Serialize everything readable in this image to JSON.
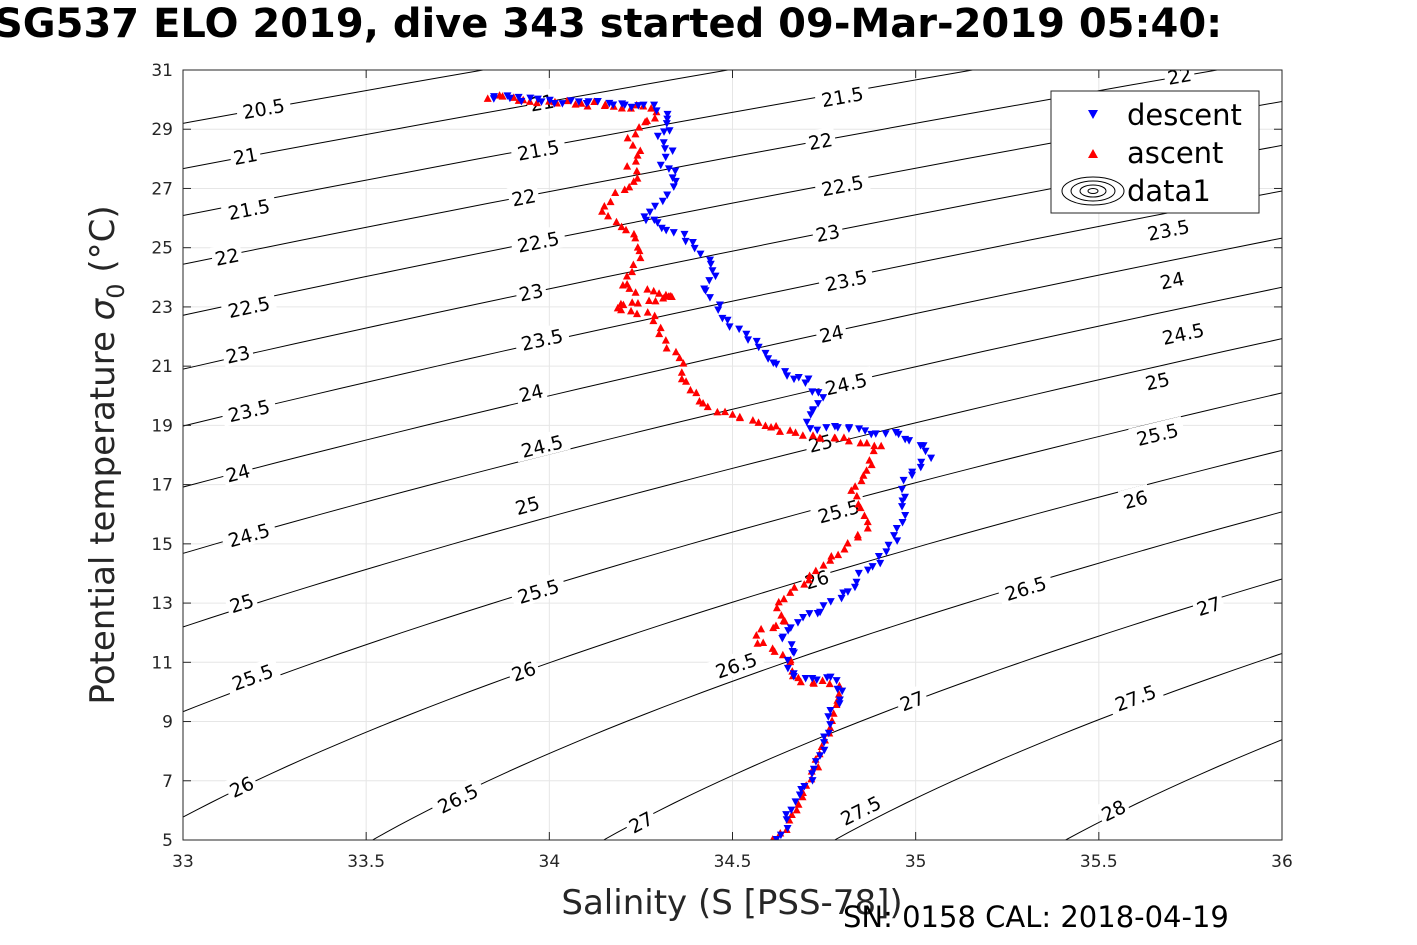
{
  "title": "SG537 ELO 2019, dive 343 started 09-Mar-2019 05:40:",
  "footer": "SN: 0158  CAL: 2018-04-19",
  "colors": {
    "descent": "#0000ff",
    "ascent": "#ff0000",
    "contour": "#000000",
    "grid": "#e6e6e6",
    "axis": "#262626"
  },
  "chart_data": {
    "type": "scatter",
    "xlabel": "Salinity (S [PSS-78])",
    "ylabel_prefix": "Potential temperature ",
    "ylabel_sigma": "σ",
    "ylabel_sub": "0",
    "ylabel_suffix": " (°C)",
    "xlim": [
      33,
      36
    ],
    "ylim": [
      5,
      31
    ],
    "xticks": [
      33,
      33.5,
      34,
      34.5,
      35,
      35.5,
      36
    ],
    "xtick_labels": [
      "33",
      "33.5",
      "34",
      "34.5",
      "35",
      "35.5",
      "36"
    ],
    "yticks": [
      5,
      7,
      9,
      11,
      13,
      15,
      17,
      19,
      21,
      23,
      25,
      27,
      29,
      31
    ],
    "ytick_labels": [
      "5",
      "7",
      "9",
      "11",
      "13",
      "15",
      "17",
      "19",
      "21",
      "23",
      "25",
      "27",
      "29",
      "31"
    ],
    "grid": true,
    "legend": {
      "placement": "top-right",
      "entries": [
        "descent",
        "ascent",
        "data1"
      ]
    },
    "contours": {
      "name": "data1",
      "levels": [
        20.5,
        21,
        21.5,
        22,
        22.5,
        23,
        23.5,
        24,
        24.5,
        25,
        25.5,
        26,
        26.5,
        27,
        27.5,
        28
      ],
      "labels": [
        {
          "text": "20.5",
          "s": 33.22,
          "t": 29.7
        },
        {
          "text": "21",
          "s": 33.17,
          "t": 28.1
        },
        {
          "text": "21.5",
          "s": 33.18,
          "t": 26.3
        },
        {
          "text": "22",
          "s": 33.12,
          "t": 24.7
        },
        {
          "text": "22.5",
          "s": 33.18,
          "t": 23.0
        },
        {
          "text": "23",
          "s": 33.15,
          "t": 21.4
        },
        {
          "text": "23.5",
          "s": 33.18,
          "t": 19.5
        },
        {
          "text": "24",
          "s": 33.15,
          "t": 17.4
        },
        {
          "text": "24.5",
          "s": 33.18,
          "t": 15.3
        },
        {
          "text": "25",
          "s": 33.16,
          "t": 13.0
        },
        {
          "text": "25.5",
          "s": 33.19,
          "t": 10.5
        },
        {
          "text": "26",
          "s": 33.16,
          "t": 6.8
        },
        {
          "text": "21",
          "s": 33.98,
          "t": 29.9
        },
        {
          "text": "21.5",
          "s": 33.97,
          "t": 28.3
        },
        {
          "text": "22",
          "s": 33.93,
          "t": 26.7
        },
        {
          "text": "22.5",
          "s": 33.97,
          "t": 25.2
        },
        {
          "text": "23",
          "s": 33.95,
          "t": 23.5
        },
        {
          "text": "23.5",
          "s": 33.98,
          "t": 21.9
        },
        {
          "text": "24",
          "s": 33.95,
          "t": 20.1
        },
        {
          "text": "24.5",
          "s": 33.98,
          "t": 18.3
        },
        {
          "text": "25",
          "s": 33.94,
          "t": 16.3
        },
        {
          "text": "25.5",
          "s": 33.97,
          "t": 13.4
        },
        {
          "text": "26",
          "s": 33.93,
          "t": 10.7
        },
        {
          "text": "26.5",
          "s": 33.75,
          "t": 6.4
        },
        {
          "text": "27",
          "s": 34.25,
          "t": 5.6
        },
        {
          "text": "21.5",
          "s": 34.8,
          "t": 30.1
        },
        {
          "text": "22",
          "s": 34.74,
          "t": 28.6
        },
        {
          "text": "22.5",
          "s": 34.8,
          "t": 27.1
        },
        {
          "text": "23",
          "s": 34.76,
          "t": 25.5
        },
        {
          "text": "23.5",
          "s": 34.81,
          "t": 23.9
        },
        {
          "text": "24",
          "s": 34.77,
          "t": 22.1
        },
        {
          "text": "24.5",
          "s": 34.81,
          "t": 20.4
        },
        {
          "text": "25",
          "s": 34.74,
          "t": 18.4
        },
        {
          "text": "25.5",
          "s": 34.79,
          "t": 16.1
        },
        {
          "text": "26",
          "s": 34.73,
          "t": 13.8
        },
        {
          "text": "26.5",
          "s": 34.51,
          "t": 10.9
        },
        {
          "text": "27",
          "s": 34.99,
          "t": 9.7
        },
        {
          "text": "27.5",
          "s": 34.85,
          "t": 6.0
        },
        {
          "text": "22",
          "s": 35.72,
          "t": 30.8
        },
        {
          "text": "23.5",
          "s": 35.69,
          "t": 25.6
        },
        {
          "text": "24",
          "s": 35.7,
          "t": 23.9
        },
        {
          "text": "24.5",
          "s": 35.73,
          "t": 22.1
        },
        {
          "text": "25",
          "s": 35.66,
          "t": 20.5
        },
        {
          "text": "25.5",
          "s": 35.66,
          "t": 18.7
        },
        {
          "text": "26",
          "s": 35.6,
          "t": 16.5
        },
        {
          "text": "26.5",
          "s": 35.3,
          "t": 13.5
        },
        {
          "text": "27",
          "s": 35.8,
          "t": 12.9
        },
        {
          "text": "27.5",
          "s": 35.6,
          "t": 9.8
        },
        {
          "text": "28",
          "s": 35.54,
          "t": 6.0
        }
      ]
    },
    "series": [
      {
        "name": "descent",
        "marker": "triangle-down",
        "path": [
          [
            33.84,
            30.1
          ],
          [
            34.0,
            29.95
          ],
          [
            34.15,
            29.85
          ],
          [
            34.28,
            29.75
          ],
          [
            34.32,
            29.55
          ],
          [
            34.31,
            29.3
          ],
          [
            34.33,
            29.0
          ],
          [
            34.3,
            28.7
          ],
          [
            34.33,
            28.3
          ],
          [
            34.31,
            27.9
          ],
          [
            34.35,
            27.5
          ],
          [
            34.33,
            27.0
          ],
          [
            34.3,
            26.5
          ],
          [
            34.26,
            26.0
          ],
          [
            34.32,
            25.6
          ],
          [
            34.38,
            25.3
          ],
          [
            34.4,
            24.9
          ],
          [
            34.45,
            24.4
          ],
          [
            34.45,
            24.0
          ],
          [
            34.43,
            23.6
          ],
          [
            34.45,
            23.2
          ],
          [
            34.47,
            22.7
          ],
          [
            34.57,
            21.7
          ],
          [
            34.65,
            20.6
          ],
          [
            34.7,
            20.6
          ],
          [
            34.72,
            20.2
          ],
          [
            34.75,
            19.8
          ],
          [
            34.7,
            19.4
          ],
          [
            34.72,
            18.9
          ],
          [
            34.8,
            18.9
          ],
          [
            34.87,
            18.8
          ],
          [
            34.93,
            18.7
          ],
          [
            34.98,
            18.6
          ],
          [
            35.02,
            18.3
          ],
          [
            35.04,
            17.9
          ],
          [
            35.0,
            17.6
          ],
          [
            34.98,
            17.2
          ],
          [
            34.97,
            16.8
          ],
          [
            34.97,
            16.3
          ],
          [
            34.96,
            15.8
          ],
          [
            34.95,
            15.3
          ],
          [
            34.93,
            14.9
          ],
          [
            34.9,
            14.4
          ],
          [
            34.86,
            14.0
          ],
          [
            34.83,
            13.6
          ],
          [
            34.8,
            13.2
          ],
          [
            34.75,
            12.8
          ],
          [
            34.7,
            12.5
          ],
          [
            34.66,
            12.1
          ],
          [
            34.63,
            11.8
          ],
          [
            34.67,
            11.4
          ],
          [
            34.66,
            11.0
          ],
          [
            34.65,
            10.7
          ],
          [
            34.7,
            10.5
          ],
          [
            34.78,
            10.4
          ],
          [
            34.8,
            10.0
          ],
          [
            34.78,
            9.5
          ],
          [
            34.77,
            9.0
          ],
          [
            34.76,
            8.5
          ],
          [
            34.76,
            8.0
          ],
          [
            34.73,
            7.5
          ],
          [
            34.71,
            7.0
          ],
          [
            34.68,
            6.5
          ],
          [
            34.66,
            6.0
          ],
          [
            34.65,
            5.6
          ],
          [
            34.64,
            5.2
          ],
          [
            34.63,
            5.0
          ]
        ],
        "count": 190
      },
      {
        "name": "ascent",
        "marker": "triangle-up",
        "path": [
          [
            33.84,
            30.1
          ],
          [
            34.0,
            29.9
          ],
          [
            34.15,
            29.85
          ],
          [
            34.28,
            29.7
          ],
          [
            34.3,
            29.5
          ],
          [
            34.25,
            29.1
          ],
          [
            34.22,
            28.7
          ],
          [
            34.25,
            28.3
          ],
          [
            34.22,
            27.8
          ],
          [
            34.24,
            27.3
          ],
          [
            34.18,
            26.8
          ],
          [
            34.15,
            26.3
          ],
          [
            34.18,
            25.9
          ],
          [
            34.23,
            25.5
          ],
          [
            34.25,
            25.0
          ],
          [
            34.24,
            24.6
          ],
          [
            34.22,
            24.1
          ],
          [
            34.2,
            23.7
          ],
          [
            34.27,
            23.5
          ],
          [
            34.35,
            23.4
          ],
          [
            34.25,
            23.2
          ],
          [
            34.18,
            23.0
          ],
          [
            34.28,
            22.7
          ],
          [
            34.32,
            21.7
          ],
          [
            34.36,
            21.1
          ],
          [
            34.38,
            20.2
          ],
          [
            34.43,
            19.6
          ],
          [
            34.55,
            19.2
          ],
          [
            34.65,
            18.8
          ],
          [
            34.72,
            18.6
          ],
          [
            34.83,
            18.5
          ],
          [
            34.9,
            18.3
          ],
          [
            34.88,
            17.8
          ],
          [
            34.86,
            17.3
          ],
          [
            34.82,
            16.8
          ],
          [
            34.85,
            16.3
          ],
          [
            34.87,
            15.8
          ],
          [
            34.85,
            15.3
          ],
          [
            34.8,
            14.8
          ],
          [
            34.75,
            14.3
          ],
          [
            34.7,
            13.8
          ],
          [
            34.66,
            13.3
          ],
          [
            34.62,
            12.8
          ],
          [
            34.65,
            12.4
          ],
          [
            34.58,
            12.1
          ],
          [
            34.57,
            11.7
          ],
          [
            34.63,
            11.4
          ],
          [
            34.66,
            11.0
          ],
          [
            34.65,
            10.6
          ],
          [
            34.7,
            10.4
          ],
          [
            34.78,
            10.3
          ],
          [
            34.79,
            9.8
          ],
          [
            34.77,
            9.3
          ],
          [
            34.76,
            8.8
          ],
          [
            34.75,
            8.3
          ],
          [
            34.74,
            7.8
          ],
          [
            34.72,
            7.3
          ],
          [
            34.7,
            6.8
          ],
          [
            34.68,
            6.3
          ],
          [
            34.66,
            5.8
          ],
          [
            34.64,
            5.4
          ],
          [
            34.62,
            5.0
          ]
        ],
        "count": 200
      }
    ]
  }
}
